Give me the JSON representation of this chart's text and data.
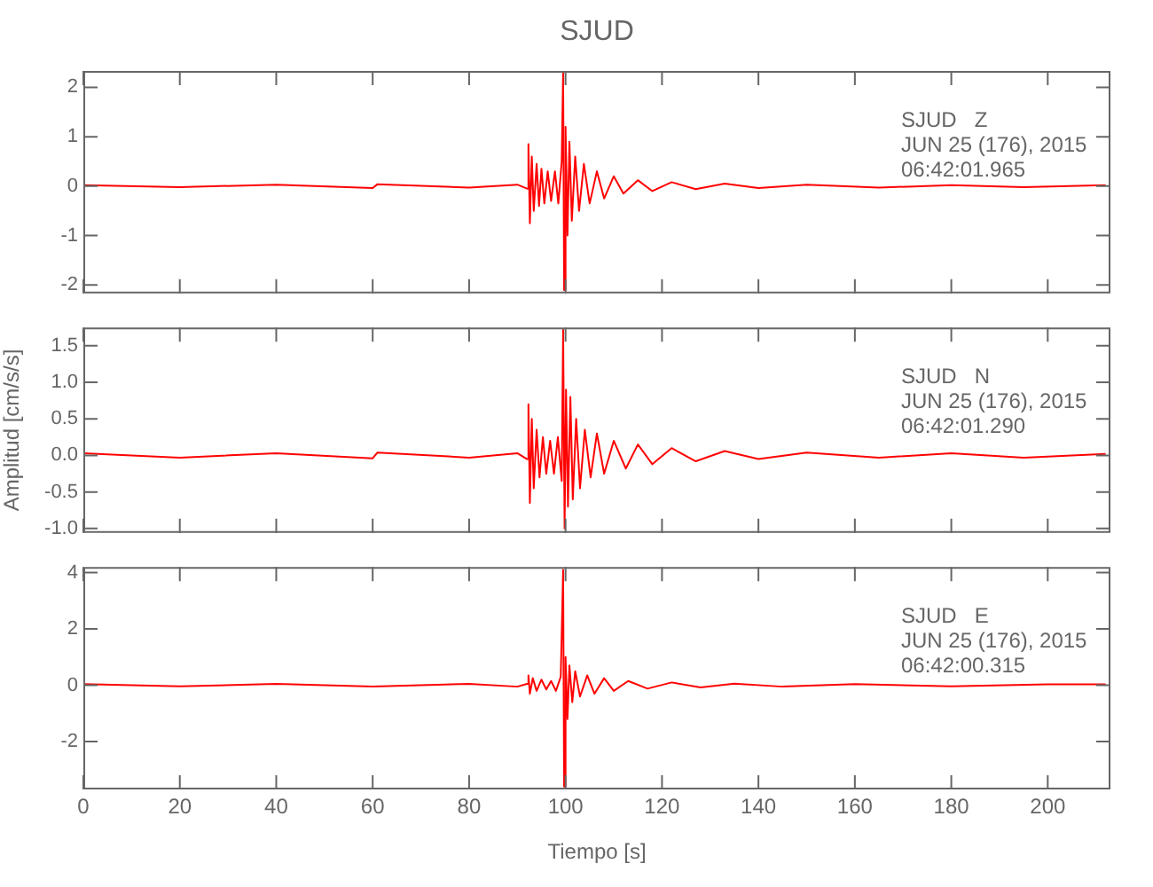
{
  "chart_data": [
    {
      "type": "line",
      "title": "SJUD",
      "annotations": [
        "SJUD   Z",
        "JUN 25 (176), 2015",
        "06:42:01.965"
      ],
      "xlim": [
        0,
        213
      ],
      "xticks": [
        0,
        20,
        40,
        60,
        80,
        100,
        120,
        140,
        160,
        180,
        200
      ],
      "ylim": [
        -2.17,
        2.33
      ],
      "yticks": [
        -2,
        -1,
        0,
        1,
        2
      ],
      "tick_labels": "y",
      "grid": false,
      "legend": false,
      "marker": "none",
      "line_style": "solid",
      "series": [
        {
          "color": "#ff0000",
          "x": [
            0,
            20,
            40,
            60,
            61,
            80,
            90,
            92,
            92.3,
            92.6,
            93,
            93.4,
            94,
            94.5,
            95,
            95.6,
            96.3,
            97,
            97.8,
            98.5,
            99.2,
            99.5,
            99.7,
            100,
            100.4,
            100.8,
            101.3,
            102,
            102.8,
            103.8,
            105,
            106.5,
            108,
            110,
            112,
            115,
            118,
            122,
            127,
            133,
            140,
            150,
            165,
            180,
            195,
            212
          ],
          "values": [
            0.02,
            -0.02,
            0.03,
            -0.04,
            0.04,
            -0.03,
            0.03,
            -0.05,
            0.85,
            -0.75,
            0.6,
            -0.5,
            0.45,
            -0.4,
            0.35,
            -0.35,
            0.3,
            -0.3,
            0.3,
            -0.35,
            0.5,
            2.3,
            -2.1,
            1.2,
            -1.0,
            0.9,
            -0.7,
            0.6,
            -0.5,
            0.45,
            -0.35,
            0.3,
            -0.25,
            0.2,
            -0.15,
            0.12,
            -0.1,
            0.08,
            -0.06,
            0.05,
            -0.04,
            0.03,
            -0.03,
            0.02,
            -0.02,
            0.02
          ]
        }
      ]
    },
    {
      "type": "line",
      "ylabel": "Amplitud [cm/s/s]",
      "annotations": [
        "SJUD   N",
        "JUN 25 (176), 2015",
        "06:42:01.290"
      ],
      "xlim": [
        0,
        213
      ],
      "xticks": [
        0,
        20,
        40,
        60,
        80,
        100,
        120,
        140,
        160,
        180,
        200
      ],
      "ylim": [
        -1.06,
        1.75
      ],
      "yticks": [
        {
          "value": -1,
          "label": "-1.0"
        },
        {
          "value": -0.5,
          "label": "-0.5"
        },
        {
          "value": 0,
          "label": "0.0"
        },
        {
          "value": 0.5,
          "label": "0.5"
        },
        {
          "value": 1,
          "label": "1.0"
        },
        {
          "value": 1.5,
          "label": "1.5"
        }
      ],
      "tick_labels": "y",
      "grid": false,
      "legend": false,
      "marker": "none",
      "line_style": "solid",
      "series": [
        {
          "color": "#ff0000",
          "x": [
            0,
            20,
            40,
            60,
            61,
            80,
            90,
            92,
            92.3,
            92.6,
            93,
            93.4,
            94,
            94.6,
            95.3,
            96,
            96.8,
            97.6,
            98.4,
            99.2,
            99.5,
            99.8,
            100.1,
            100.5,
            101,
            101.5,
            102.2,
            103,
            104,
            105.2,
            106.5,
            108,
            110,
            112.5,
            115,
            118,
            122,
            127,
            133,
            140,
            150,
            165,
            180,
            195,
            212
          ],
          "values": [
            0.03,
            -0.03,
            0.03,
            -0.04,
            0.04,
            -0.03,
            0.03,
            -0.05,
            0.7,
            -0.65,
            0.5,
            -0.45,
            0.35,
            -0.3,
            0.25,
            -0.25,
            0.2,
            -0.25,
            0.25,
            -0.35,
            1.72,
            -1.0,
            0.9,
            -0.7,
            0.8,
            -0.6,
            0.5,
            -0.45,
            0.35,
            -0.3,
            0.3,
            -0.25,
            0.2,
            -0.18,
            0.15,
            -0.12,
            0.1,
            -0.08,
            0.06,
            -0.05,
            0.04,
            -0.03,
            0.03,
            -0.03,
            0.02
          ]
        }
      ]
    },
    {
      "type": "line",
      "xlabel": "Tiempo [s]",
      "annotations": [
        "SJUD   E",
        "JUN 25 (176), 2015",
        "06:42:00.315"
      ],
      "xlim": [
        0,
        213
      ],
      "xticks": [
        0,
        20,
        40,
        60,
        80,
        100,
        120,
        140,
        160,
        180,
        200
      ],
      "ylim": [
        -3.7,
        4.2
      ],
      "yticks": [
        -2,
        0,
        2,
        4
      ],
      "grid": false,
      "legend": false,
      "marker": "none",
      "line_style": "solid",
      "series": [
        {
          "color": "#ff0000",
          "x": [
            0,
            20,
            40,
            60,
            80,
            90,
            92,
            92.3,
            92.6,
            93.2,
            94,
            95,
            96,
            97,
            98,
            99,
            99.5,
            99.7,
            100,
            100.4,
            100.8,
            101.4,
            102,
            103,
            104.5,
            106,
            108,
            110,
            113,
            117,
            122,
            128,
            135,
            145,
            160,
            180,
            200,
            212
          ],
          "values": [
            0.04,
            -0.04,
            0.05,
            -0.05,
            0.05,
            -0.05,
            0.05,
            0.35,
            -0.3,
            0.25,
            -0.2,
            0.2,
            -0.15,
            0.15,
            -0.2,
            0.3,
            4.1,
            -3.6,
            1.0,
            -1.2,
            0.7,
            -0.6,
            0.5,
            -0.4,
            0.35,
            -0.3,
            0.25,
            -0.2,
            0.15,
            -0.12,
            0.1,
            -0.08,
            0.06,
            -0.05,
            0.04,
            -0.04,
            0.03,
            0.03
          ]
        }
      ]
    }
  ]
}
